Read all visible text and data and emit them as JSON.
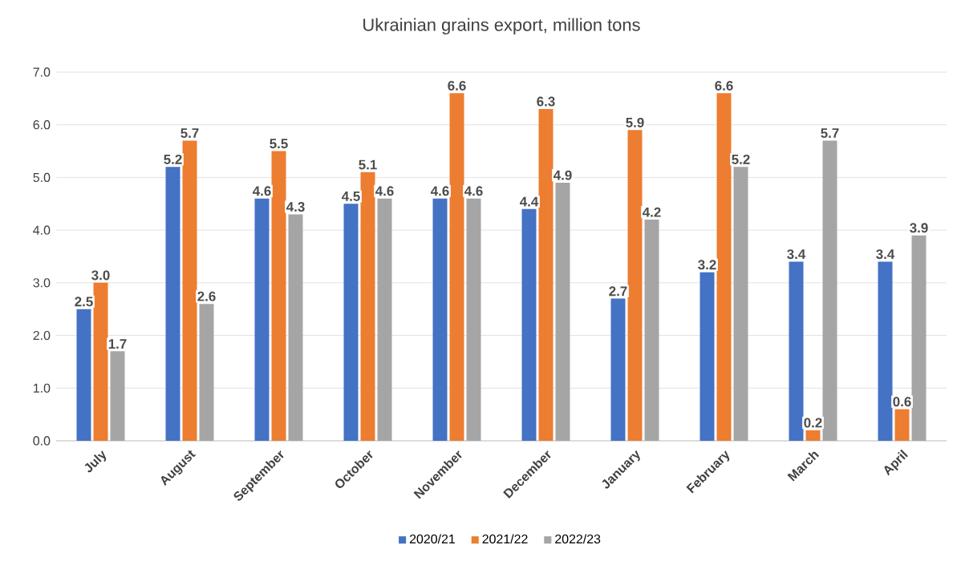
{
  "chart_data": {
    "type": "bar",
    "title": "Ukrainian grains export, million tons",
    "categories": [
      "July",
      "August",
      "September",
      "October",
      "November",
      "December",
      "January",
      "February",
      "March",
      "April"
    ],
    "series": [
      {
        "name": "2020/21",
        "color": "#4472c4",
        "values": [
          2.5,
          5.2,
          4.6,
          4.5,
          4.6,
          4.4,
          2.7,
          3.2,
          3.4,
          3.4
        ],
        "value_labels": [
          "2.5",
          "5.2",
          "4.6",
          "4.5",
          "4.6",
          "4.4",
          "2.7",
          "3.2",
          "3.4",
          "3.4"
        ]
      },
      {
        "name": "2021/22",
        "color": "#ed7d31",
        "values": [
          3.0,
          5.7,
          5.5,
          5.1,
          6.6,
          6.3,
          5.9,
          6.6,
          0.2,
          0.6
        ],
        "value_labels": [
          "3.0",
          "5.7",
          "5.5",
          "5.1",
          "6.6",
          "6.3",
          "5.9",
          "6.6",
          "0.2",
          "0.6"
        ]
      },
      {
        "name": "2022/23",
        "color": "#a5a5a5",
        "values": [
          1.7,
          2.6,
          4.3,
          4.6,
          4.6,
          4.9,
          4.2,
          5.2,
          5.7,
          3.9
        ],
        "value_labels": [
          "1.7",
          "2.6",
          "4.3",
          "4.6",
          "4.6",
          "4.9",
          "4.2",
          "5.2",
          "5.7",
          "3.9"
        ]
      }
    ],
    "ylim": [
      0,
      7
    ],
    "yticks": [
      {
        "value": 0,
        "label": "0.0"
      },
      {
        "value": 1,
        "label": "1.0"
      },
      {
        "value": 2,
        "label": "2.0"
      },
      {
        "value": 3,
        "label": "3.0"
      },
      {
        "value": 4,
        "label": "4.0"
      },
      {
        "value": 5,
        "label": "5.0"
      },
      {
        "value": 6,
        "label": "6.0"
      },
      {
        "value": 7,
        "label": "7.0"
      }
    ],
    "grid": "y",
    "legend": "bottom"
  }
}
